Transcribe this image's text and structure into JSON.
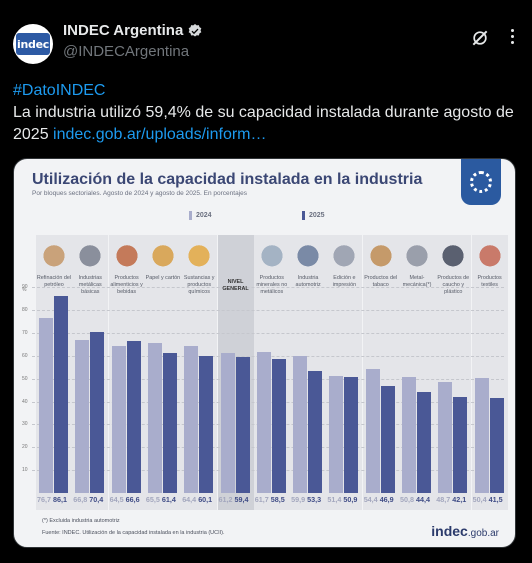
{
  "author": {
    "name": "INDEC Argentina",
    "handle": "@INDECArgentina",
    "avatar_text": "indec"
  },
  "tweet": {
    "hashtag": "#DatoINDEC",
    "text": "La industria utilizó 59,4% de su capacidad instalada durante agosto de 2025 ",
    "link": "indec.gob.ar/uploads/inform…"
  },
  "chart_data": {
    "type": "bar",
    "title": "Utilización de la capacidad instalada en la industria",
    "subtitle": "Por bloques sectoriales. Agosto de 2024 y agosto de 2025. En porcentajes",
    "ylabel": "%",
    "ylim": [
      0,
      100
    ],
    "yticks": [
      "90",
      "80",
      "70",
      "60",
      "50",
      "40",
      "30",
      "20",
      "10"
    ],
    "categories": [
      "Refinación del petróleo",
      "Industrias metálicas básicas",
      "Productos alimenticios y bebidas",
      "Papel y cartón",
      "Sustancias y productos químicos",
      "NIVEL GENERAL",
      "Productos minerales no metálicos",
      "Industria automotriz",
      "Edición e impresión",
      "Productos del tabaco",
      "Metal-mecánica(*)",
      "Productos de caucho y plástico",
      "Productos textiles"
    ],
    "series": [
      {
        "name": "2024",
        "values": [
          76.7,
          66.8,
          64.5,
          65.5,
          64.4,
          61.2,
          61.7,
          59.9,
          51.4,
          54.4,
          50.8,
          48.7,
          50.4
        ],
        "labels": [
          "76,7",
          "66,8",
          "64,5",
          "65,5",
          "64,4",
          "61,2",
          "61,7",
          "59,9",
          "51,4",
          "54,4",
          "50,8",
          "48,7",
          "50,4"
        ]
      },
      {
        "name": "2025",
        "values": [
          86.1,
          70.4,
          66.6,
          61.4,
          60.1,
          59.4,
          58.5,
          53.3,
          50.9,
          46.9,
          44.4,
          42.1,
          41.5
        ],
        "labels": [
          "86,1",
          "70,4",
          "66,6",
          "61,4",
          "60,1",
          "59,4",
          "58,5",
          "53,3",
          "50,9",
          "46,9",
          "44,4",
          "42,1",
          "41,5"
        ]
      }
    ],
    "legend": [
      "2024",
      "2025"
    ],
    "legend_position": "top",
    "colors": {
      "2024": "#a9adcc",
      "2025": "#4a5896"
    },
    "footnote": "(*) Excluida industria automotriz",
    "source": "Fuente: INDEC. Utilización de la capacidad instalada en la industria (UCII)."
  },
  "logo": {
    "main": "indec",
    "suffix": ".gob.ar"
  },
  "icons": {
    "verified": "verified-badge-icon",
    "grok": "grok-icon",
    "more": "more-options-icon"
  }
}
